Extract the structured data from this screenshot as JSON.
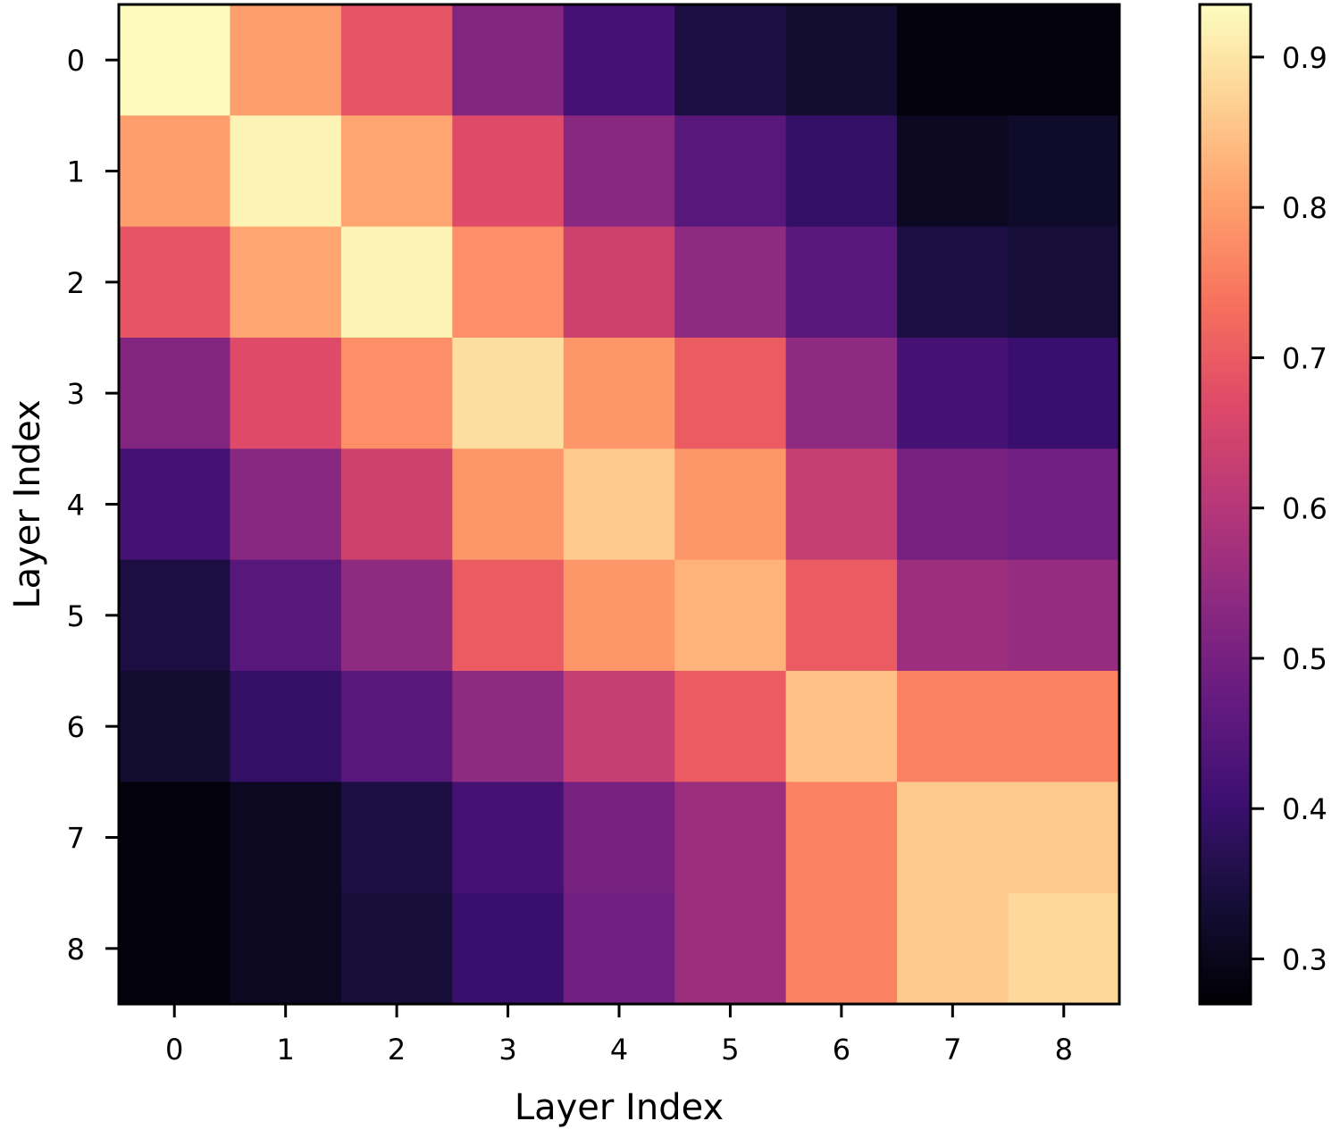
{
  "chart_data": {
    "type": "heatmap",
    "title": "",
    "xlabel": "Layer Index",
    "ylabel": "Layer Index",
    "x_categories": [
      "0",
      "1",
      "2",
      "3",
      "4",
      "5",
      "6",
      "7",
      "8"
    ],
    "y_categories": [
      "0",
      "1",
      "2",
      "3",
      "4",
      "5",
      "6",
      "7",
      "8"
    ],
    "values": [
      [
        0.93,
        0.8,
        0.69,
        0.52,
        0.42,
        0.35,
        0.33,
        0.28,
        0.28
      ],
      [
        0.8,
        0.92,
        0.81,
        0.67,
        0.53,
        0.45,
        0.39,
        0.31,
        0.32
      ],
      [
        0.69,
        0.81,
        0.92,
        0.78,
        0.64,
        0.54,
        0.45,
        0.35,
        0.34
      ],
      [
        0.52,
        0.67,
        0.78,
        0.89,
        0.79,
        0.7,
        0.54,
        0.42,
        0.4
      ],
      [
        0.42,
        0.53,
        0.64,
        0.79,
        0.86,
        0.79,
        0.63,
        0.5,
        0.49
      ],
      [
        0.35,
        0.45,
        0.54,
        0.7,
        0.79,
        0.83,
        0.7,
        0.56,
        0.55
      ],
      [
        0.33,
        0.39,
        0.45,
        0.54,
        0.63,
        0.7,
        0.85,
        0.76,
        0.76
      ],
      [
        0.28,
        0.31,
        0.35,
        0.42,
        0.5,
        0.56,
        0.76,
        0.86,
        0.86
      ],
      [
        0.28,
        0.31,
        0.34,
        0.4,
        0.49,
        0.56,
        0.76,
        0.86,
        0.88
      ]
    ],
    "colormap": "magma",
    "colorbar": {
      "vmin": 0.27,
      "vmax": 0.935,
      "ticks": [
        0.3,
        0.4,
        0.5,
        0.6,
        0.7,
        0.8,
        0.9
      ],
      "tick_labels": [
        "0.3",
        "0.4",
        "0.5",
        "0.6",
        "0.7",
        "0.8",
        "0.9"
      ]
    },
    "grid": false,
    "legend": "none"
  }
}
